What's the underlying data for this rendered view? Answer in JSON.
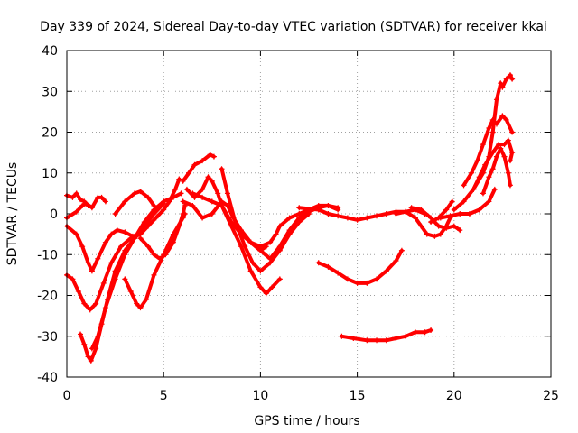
{
  "chart_data": {
    "type": "scatter",
    "title": "Day 339 of 2024, Sidereal Day-to-day VTEC variation (SDTVAR) for receiver kkai",
    "xlabel": "GPS time / hours",
    "ylabel": "SDTVAR / TECUs",
    "xlim": [
      0,
      25
    ],
    "ylim": [
      -40,
      40
    ],
    "x_ticks": [
      "0",
      "5",
      "10",
      "15",
      "20",
      "25"
    ],
    "y_ticks": [
      "-40",
      "-30",
      "-20",
      "-10",
      "0",
      "10",
      "20",
      "30",
      "40"
    ],
    "grid": true,
    "marker": "+",
    "color": "#ff0000",
    "series": [
      {
        "points": [
          [
            0,
            4.5
          ],
          [
            0.3,
            4
          ],
          [
            0.5,
            5
          ],
          [
            0.7,
            3.5
          ],
          [
            0.9,
            3
          ],
          [
            1.1,
            2
          ]
        ]
      },
      {
        "points": [
          [
            0,
            -1
          ],
          [
            0.5,
            0.5
          ],
          [
            0.8,
            2
          ],
          [
            1,
            2.5
          ],
          [
            1.3,
            1.5
          ],
          [
            1.6,
            4
          ],
          [
            1.8,
            4
          ],
          [
            2,
            3
          ]
        ]
      },
      {
        "points": [
          [
            0,
            -3
          ],
          [
            0.5,
            -5
          ],
          [
            0.8,
            -8
          ],
          [
            1.1,
            -12
          ],
          [
            1.3,
            -14
          ],
          [
            1.6,
            -11
          ],
          [
            2,
            -7
          ],
          [
            2.3,
            -5
          ],
          [
            2.6,
            -4
          ],
          [
            3,
            -4.5
          ],
          [
            3.4,
            -5.5
          ],
          [
            3.7,
            -5
          ]
        ]
      },
      {
        "points": [
          [
            0,
            -15
          ],
          [
            0.3,
            -16
          ],
          [
            0.6,
            -19
          ],
          [
            0.9,
            -22
          ],
          [
            1.2,
            -23.5
          ],
          [
            1.5,
            -22
          ],
          [
            1.9,
            -17
          ],
          [
            2.3,
            -12
          ],
          [
            2.8,
            -8
          ],
          [
            3.3,
            -6
          ],
          [
            3.8,
            -5
          ],
          [
            4.2,
            -3
          ],
          [
            4.6,
            -1
          ],
          [
            5,
            1
          ],
          [
            5.3,
            3
          ],
          [
            5.6,
            6
          ],
          [
            5.8,
            8.5
          ]
        ]
      },
      {
        "points": [
          [
            0.7,
            -29.5
          ],
          [
            0.9,
            -32
          ],
          [
            1.1,
            -35
          ],
          [
            1.25,
            -36
          ],
          [
            1.5,
            -33
          ],
          [
            1.8,
            -27
          ],
          [
            2.1,
            -21
          ],
          [
            2.5,
            -14
          ],
          [
            3,
            -9
          ],
          [
            3.5,
            -6
          ],
          [
            4,
            -2
          ],
          [
            4.5,
            1
          ],
          [
            5,
            3
          ],
          [
            5.5,
            4
          ],
          [
            5.9,
            5
          ]
        ]
      },
      {
        "points": [
          [
            1.3,
            -33
          ],
          [
            1.6,
            -30
          ],
          [
            2,
            -23
          ],
          [
            2.5,
            -16
          ],
          [
            3,
            -10
          ],
          [
            3.5,
            -6
          ],
          [
            4,
            -3
          ],
          [
            4.5,
            0
          ],
          [
            5,
            2.5
          ]
        ]
      },
      {
        "points": [
          [
            2.5,
            0
          ],
          [
            3,
            3
          ],
          [
            3.5,
            5
          ],
          [
            3.8,
            5.5
          ],
          [
            4.2,
            4
          ],
          [
            4.5,
            2
          ]
        ]
      },
      {
        "points": [
          [
            3,
            -16
          ],
          [
            3.3,
            -19
          ],
          [
            3.6,
            -22
          ],
          [
            3.8,
            -23
          ],
          [
            4.1,
            -21
          ],
          [
            4.5,
            -15
          ],
          [
            5,
            -10
          ],
          [
            5.5,
            -5
          ],
          [
            6,
            -1
          ],
          [
            6.1,
            0
          ]
        ]
      },
      {
        "points": [
          [
            3.8,
            -6
          ],
          [
            4.2,
            -8
          ],
          [
            4.5,
            -10
          ],
          [
            4.8,
            -11
          ],
          [
            5.1,
            -10
          ],
          [
            5.5,
            -7
          ],
          [
            5.8,
            -3
          ],
          [
            6,
            0
          ],
          [
            6.1,
            2
          ]
        ]
      },
      {
        "points": [
          [
            6,
            8
          ],
          [
            6.3,
            10
          ],
          [
            6.6,
            12
          ],
          [
            7,
            13
          ],
          [
            7.4,
            14.5
          ],
          [
            7.6,
            14
          ]
        ]
      },
      {
        "points": [
          [
            6.2,
            6
          ],
          [
            6.6,
            4
          ],
          [
            7,
            6
          ],
          [
            7.3,
            9
          ],
          [
            7.5,
            8
          ],
          [
            7.8,
            5
          ],
          [
            8,
            2
          ],
          [
            8.5,
            -2
          ],
          [
            9,
            -5
          ],
          [
            9.5,
            -7
          ],
          [
            10,
            -8
          ],
          [
            10.5,
            -7
          ],
          [
            10.8,
            -5
          ],
          [
            11,
            -3
          ],
          [
            11.5,
            -1
          ],
          [
            12,
            0
          ],
          [
            12.5,
            1
          ],
          [
            13,
            2
          ],
          [
            13.5,
            2
          ],
          [
            14,
            1.5
          ]
        ]
      },
      {
        "points": [
          [
            6,
            3
          ],
          [
            6.5,
            2
          ],
          [
            7,
            -1
          ],
          [
            7.5,
            0
          ],
          [
            8,
            3
          ],
          [
            8.3,
            2
          ],
          [
            8.6,
            -1
          ],
          [
            9,
            -4
          ],
          [
            9.5,
            -7
          ],
          [
            10,
            -9
          ],
          [
            10.3,
            -8
          ]
        ]
      },
      {
        "points": [
          [
            6.5,
            5
          ],
          [
            7,
            4
          ],
          [
            7.5,
            3
          ],
          [
            8,
            2
          ],
          [
            8.5,
            -3
          ],
          [
            9,
            -8
          ],
          [
            9.5,
            -14
          ],
          [
            10,
            -18
          ],
          [
            10.3,
            -19.5
          ],
          [
            10.6,
            -18
          ],
          [
            11,
            -16
          ]
        ]
      },
      {
        "points": [
          [
            8,
            11
          ],
          [
            8.3,
            5
          ],
          [
            8.7,
            -2
          ],
          [
            9.2,
            -8
          ],
          [
            9.6,
            -12
          ],
          [
            10,
            -14
          ],
          [
            10.5,
            -12
          ],
          [
            11,
            -9
          ],
          [
            11.5,
            -5
          ],
          [
            12,
            -2
          ],
          [
            12.5,
            0
          ]
        ]
      },
      {
        "points": [
          [
            9.5,
            -7
          ],
          [
            10,
            -9
          ],
          [
            10.5,
            -11
          ],
          [
            11,
            -8
          ],
          [
            11.5,
            -4
          ],
          [
            12,
            -1
          ],
          [
            12.5,
            0.5
          ],
          [
            13,
            1.5
          ],
          [
            13.5,
            2
          ],
          [
            14,
            1
          ]
        ]
      },
      {
        "points": [
          [
            13,
            -12
          ],
          [
            13.5,
            -13
          ],
          [
            14,
            -14.5
          ],
          [
            14.5,
            -16
          ],
          [
            15,
            -17
          ],
          [
            15.5,
            -17
          ],
          [
            16,
            -16
          ],
          [
            16.5,
            -14
          ],
          [
            17,
            -11.5
          ],
          [
            17.3,
            -9
          ]
        ]
      },
      {
        "points": [
          [
            14.2,
            -30
          ],
          [
            14.8,
            -30.5
          ],
          [
            15.5,
            -31
          ],
          [
            16,
            -31
          ],
          [
            16.5,
            -31
          ],
          [
            17,
            -30.5
          ],
          [
            17.5,
            -30
          ],
          [
            18,
            -29
          ],
          [
            18.5,
            -29
          ],
          [
            18.8,
            -28.5
          ]
        ]
      },
      {
        "points": [
          [
            12,
            1.5
          ],
          [
            13,
            1
          ],
          [
            13.5,
            0
          ],
          [
            14,
            -0.5
          ],
          [
            14.5,
            -1
          ],
          [
            15,
            -1.5
          ],
          [
            15.5,
            -1
          ],
          [
            16,
            -0.5
          ],
          [
            16.5,
            0
          ],
          [
            17,
            0.5
          ],
          [
            17.5,
            0.5
          ],
          [
            18,
            1
          ],
          [
            18.5,
            0
          ]
        ]
      },
      {
        "points": [
          [
            17,
            0
          ],
          [
            17.5,
            0.5
          ],
          [
            18,
            -1
          ],
          [
            18.3,
            -3
          ],
          [
            18.6,
            -5
          ],
          [
            19,
            -5.5
          ],
          [
            19.3,
            -5
          ],
          [
            19.6,
            -3
          ],
          [
            19.8,
            -1
          ]
        ]
      },
      {
        "points": [
          [
            17.8,
            1.5
          ],
          [
            18.3,
            1
          ],
          [
            18.8,
            -1
          ],
          [
            19.2,
            -3
          ],
          [
            19.6,
            -3.5
          ],
          [
            20,
            -3
          ],
          [
            20.3,
            -4
          ]
        ]
      },
      {
        "points": [
          [
            18.8,
            -2
          ],
          [
            19.2,
            -1
          ],
          [
            19.6,
            1
          ],
          [
            19.9,
            3
          ]
        ]
      },
      {
        "points": [
          [
            19.3,
            -1
          ],
          [
            19.8,
            -0.5
          ],
          [
            20.3,
            0
          ],
          [
            20.8,
            0
          ],
          [
            21.3,
            1
          ],
          [
            21.8,
            3
          ],
          [
            22.1,
            6
          ]
        ]
      },
      {
        "points": [
          [
            20,
            1
          ],
          [
            20.5,
            3
          ],
          [
            21,
            6
          ],
          [
            21.5,
            10
          ],
          [
            21.8,
            14
          ],
          [
            22,
            20
          ],
          [
            22.2,
            28
          ],
          [
            22.4,
            32
          ],
          [
            22.5,
            31
          ],
          [
            22.7,
            33
          ],
          [
            22.9,
            34
          ],
          [
            23,
            33
          ]
        ]
      },
      {
        "points": [
          [
            20.5,
            7
          ],
          [
            20.9,
            10
          ],
          [
            21.2,
            13
          ],
          [
            21.5,
            17
          ],
          [
            21.8,
            21
          ],
          [
            22,
            23
          ],
          [
            22.2,
            22
          ],
          [
            22.5,
            24
          ],
          [
            22.7,
            23
          ],
          [
            23,
            20
          ]
        ]
      },
      {
        "points": [
          [
            21,
            6
          ],
          [
            21.3,
            9
          ],
          [
            21.6,
            12
          ],
          [
            22,
            15
          ],
          [
            22.3,
            17
          ],
          [
            22.6,
            17
          ],
          [
            22.8,
            18
          ],
          [
            23,
            15
          ],
          [
            22.9,
            13
          ]
        ]
      },
      {
        "points": [
          [
            21.5,
            5
          ],
          [
            21.8,
            9
          ],
          [
            22,
            11
          ],
          [
            22.2,
            14
          ],
          [
            22.4,
            16
          ],
          [
            22.6,
            14
          ],
          [
            22.8,
            10
          ],
          [
            22.9,
            7
          ]
        ]
      }
    ]
  }
}
